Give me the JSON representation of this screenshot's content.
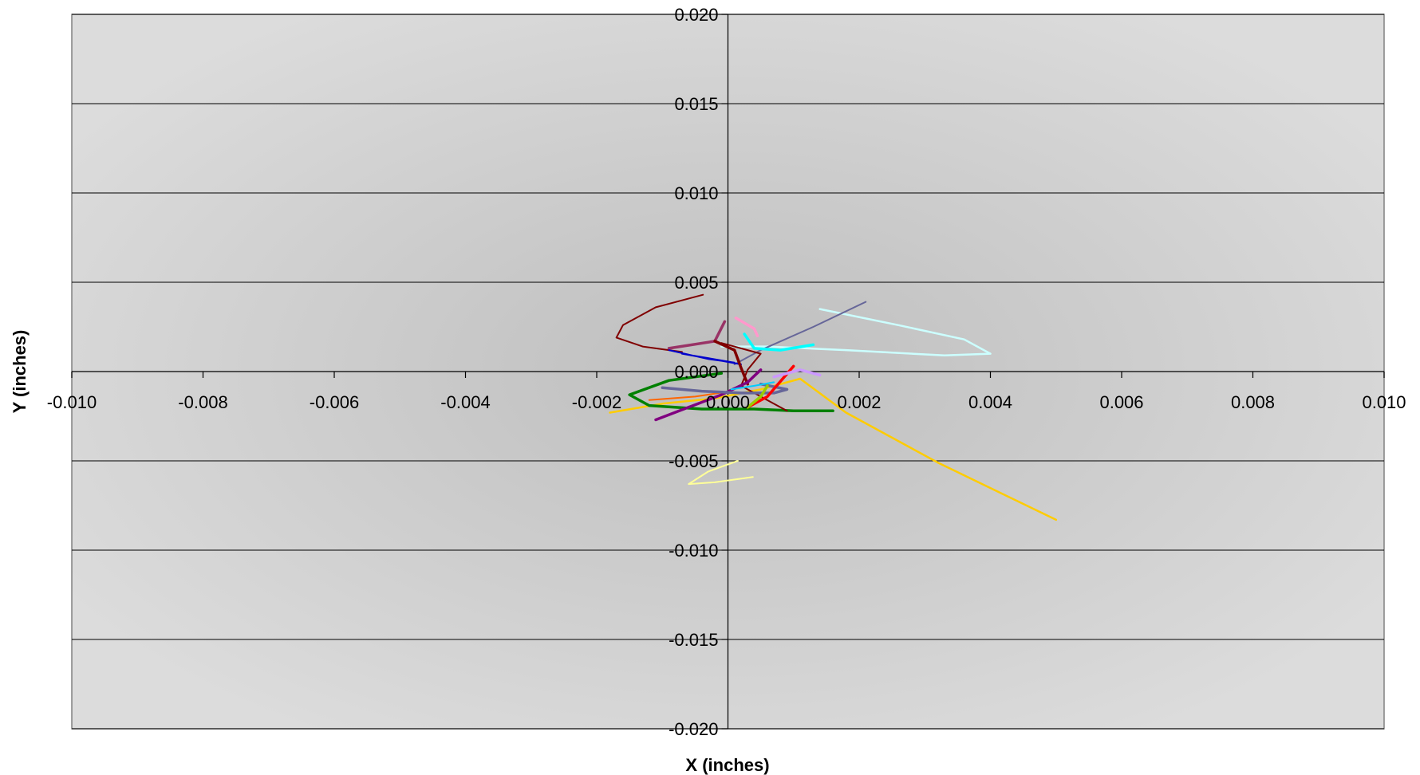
{
  "chart_data": {
    "type": "line",
    "title": "",
    "xlabel": "X (inches)",
    "ylabel": "Y (inches)",
    "xlim": [
      -0.01,
      0.01
    ],
    "ylim": [
      -0.02,
      0.02
    ],
    "x_ticks": [
      "-0.010",
      "-0.008",
      "-0.006",
      "-0.004",
      "-0.002",
      "0.000",
      "0.002",
      "0.004",
      "0.006",
      "0.008",
      "0.010"
    ],
    "y_ticks": [
      "0.020",
      "0.015",
      "0.010",
      "0.005",
      "0.000",
      "-0.005",
      "-0.010",
      "-0.015",
      "-0.020"
    ],
    "grid": "horizontal",
    "legend": "none",
    "plot_background": "#cfcfcf",
    "series": [
      {
        "color": "#800000",
        "width": 2,
        "points": [
          [
            -0.00038,
            0.0043
          ],
          [
            -0.0011,
            0.0036
          ],
          [
            -0.0016,
            0.0026
          ],
          [
            -0.0017,
            0.0019
          ],
          [
            -0.0013,
            0.0014
          ],
          [
            -0.0007,
            0.0011
          ]
        ]
      },
      {
        "color": "#ccffff",
        "width": 2.5,
        "points": [
          [
            0.0014,
            0.0035
          ],
          [
            0.0026,
            0.0026
          ],
          [
            0.0036,
            0.0018
          ],
          [
            0.004,
            0.001
          ],
          [
            0.0033,
            0.0009
          ],
          [
            0.0018,
            0.0012
          ],
          [
            0.0006,
            0.0014
          ],
          [
            -0.0001,
            0.0014
          ]
        ]
      },
      {
        "color": "#666699",
        "width": 2,
        "points": [
          [
            0.0021,
            0.0039
          ],
          [
            0.0013,
            0.0025
          ],
          [
            0.0005,
            0.0012
          ],
          [
            0.0001,
            0.0004
          ]
        ]
      },
      {
        "color": "#ffcc00",
        "width": 2.5,
        "points": [
          [
            0.005,
            -0.0083
          ],
          [
            0.0032,
            -0.0051
          ],
          [
            0.0018,
            -0.0023
          ],
          [
            0.0011,
            -0.0004
          ],
          [
            0.0005,
            -0.001
          ],
          [
            -0.0002,
            -0.0015
          ],
          [
            -0.001,
            -0.0018
          ],
          [
            -0.0018,
            -0.0023
          ]
        ]
      },
      {
        "color": "#ffff99",
        "width": 2,
        "points": [
          [
            0.00015,
            -0.005
          ],
          [
            -0.0003,
            -0.0056
          ],
          [
            -0.0006,
            -0.0063
          ],
          [
            -0.0002,
            -0.0062
          ],
          [
            0.00038,
            -0.0059
          ]
        ]
      },
      {
        "color": "#008000",
        "width": 3.5,
        "points": [
          [
            -0.0001,
            -0.0001
          ],
          [
            -0.0009,
            -0.0005
          ],
          [
            -0.0015,
            -0.0013
          ],
          [
            -0.0012,
            -0.0019
          ],
          [
            -0.0004,
            -0.0021
          ],
          [
            0.0004,
            -0.0021
          ],
          [
            0.001,
            -0.0022
          ],
          [
            0.0016,
            -0.0022
          ]
        ]
      },
      {
        "color": "#ff6600",
        "width": 2,
        "points": [
          [
            -0.0012,
            -0.0016
          ],
          [
            -0.0005,
            -0.0014
          ],
          [
            5e-05,
            -0.0011
          ]
        ]
      },
      {
        "color": "#993366",
        "width": 3.5,
        "points": [
          [
            -0.0009,
            0.0013
          ],
          [
            -0.0002,
            0.0017
          ],
          [
            -5e-05,
            0.0028
          ]
        ]
      },
      {
        "color": "#0000cc",
        "width": 2,
        "points": [
          [
            -0.0009,
            0.0012
          ],
          [
            -0.0003,
            0.0007
          ],
          [
            0.0001,
            0.0005
          ],
          [
            -0.0007,
            0.001
          ],
          [
            0.0002,
            0.0004
          ]
        ]
      },
      {
        "color": "#800000",
        "width": 3.5,
        "points": [
          [
            -0.0002,
            0.0017
          ],
          [
            0.0001,
            0.0012
          ],
          [
            0.0002,
            0.0002
          ],
          [
            0.0003,
            -0.0007
          ]
        ]
      },
      {
        "color": "#800000",
        "width": 2,
        "points": [
          [
            -0.0001,
            0.0016
          ],
          [
            0.0005,
            0.001
          ],
          [
            0.0003,
            0.0001
          ],
          [
            0.0002,
            -0.0008
          ],
          [
            0.0009,
            -0.0022
          ]
        ]
      },
      {
        "color": "#800080",
        "width": 3.5,
        "points": [
          [
            -0.0011,
            -0.0027
          ],
          [
            -0.0006,
            -0.002
          ],
          [
            -0.0001,
            -0.0013
          ],
          [
            0.0003,
            -0.0006
          ],
          [
            0.0005,
            0.0001
          ]
        ]
      },
      {
        "color": "#666699",
        "width": 3.5,
        "points": [
          [
            -0.001,
            -0.0009
          ],
          [
            -0.0004,
            -0.0011
          ],
          [
            0.0002,
            -0.0012
          ],
          [
            0.0007,
            -0.0012
          ],
          [
            0.0009,
            -0.001
          ],
          [
            0.0005,
            -0.0007
          ]
        ]
      },
      {
        "color": "#ff99cc",
        "width": 3.5,
        "points": [
          [
            0.00012,
            0.003
          ],
          [
            0.0004,
            0.0024
          ],
          [
            0.00045,
            0.002
          ]
        ]
      },
      {
        "color": "#00ffff",
        "width": 3.5,
        "points": [
          [
            0.00025,
            0.0021
          ],
          [
            0.0004,
            0.0013
          ],
          [
            0.0008,
            0.0012
          ],
          [
            0.0013,
            0.0015
          ]
        ]
      },
      {
        "color": "#ff0000",
        "width": 3.5,
        "points": [
          [
            0.0003,
            -0.002
          ],
          [
            0.0006,
            -0.0014
          ],
          [
            0.001,
            0.0003
          ]
        ]
      },
      {
        "color": "#cc99ff",
        "width": 3.5,
        "points": [
          [
            0.0007,
            -0.0003
          ],
          [
            0.0011,
            0.0001
          ],
          [
            0.0014,
            -0.0002
          ]
        ]
      },
      {
        "color": "#99cc00",
        "width": 3.5,
        "points": [
          [
            0.0003,
            -0.002
          ],
          [
            0.0005,
            -0.0014
          ],
          [
            0.0006,
            -0.0008
          ]
        ]
      },
      {
        "color": "#00ccff",
        "width": 2,
        "points": [
          [
            5e-05,
            -0.001
          ],
          [
            0.0004,
            -0.0008
          ],
          [
            0.0007,
            -0.0006
          ]
        ]
      }
    ]
  }
}
